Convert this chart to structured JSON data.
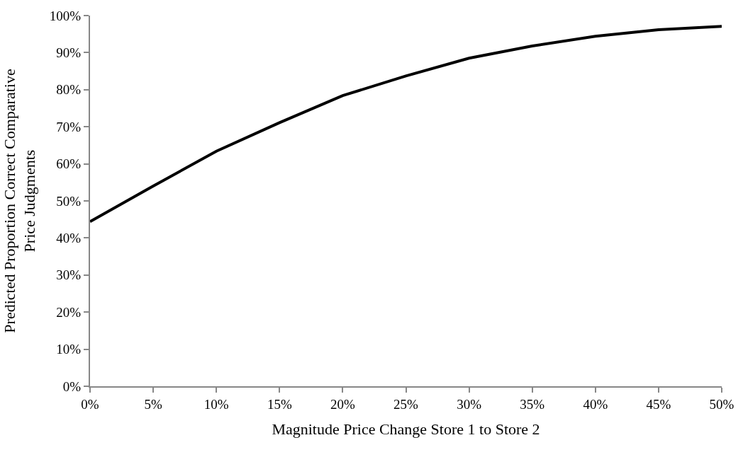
{
  "chart_data": {
    "type": "line",
    "xlabel": "Magnitude Price Change Store 1 to Store 2",
    "ylabel": "Predicted Proportion Correct Comparative Price Judgments",
    "x": [
      0,
      5,
      10,
      15,
      20,
      25,
      30,
      35,
      40,
      45,
      50
    ],
    "series": [
      {
        "color": "#000000",
        "values": [
          44.4,
          54.0,
          63.4,
          71.1,
          78.4,
          83.7,
          88.5,
          91.8,
          94.4,
          96.2,
          97.1
        ]
      }
    ],
    "xlim": [
      0,
      50
    ],
    "xticks": [
      {
        "value": 0,
        "label": "0%"
      },
      {
        "value": 5,
        "label": "5%"
      },
      {
        "value": 10,
        "label": "10%"
      },
      {
        "value": 15,
        "label": "15%"
      },
      {
        "value": 20,
        "label": "20%"
      },
      {
        "value": 25,
        "label": "25%"
      },
      {
        "value": 30,
        "label": "30%"
      },
      {
        "value": 35,
        "label": "35%"
      },
      {
        "value": 40,
        "label": "40%"
      },
      {
        "value": 45,
        "label": "45%"
      },
      {
        "value": 50,
        "label": "50%"
      }
    ],
    "ylim": [
      0,
      100
    ],
    "yticks": [
      {
        "value": 0,
        "label": "0%"
      },
      {
        "value": 10,
        "label": "10%"
      },
      {
        "value": 20,
        "label": "20%"
      },
      {
        "value": 30,
        "label": "30%"
      },
      {
        "value": 40,
        "label": "40%"
      },
      {
        "value": 50,
        "label": "50%"
      },
      {
        "value": 60,
        "label": "60%"
      },
      {
        "value": 70,
        "label": "70%"
      },
      {
        "value": 80,
        "label": "80%"
      },
      {
        "value": 90,
        "label": "90%"
      },
      {
        "value": 100,
        "label": "100%"
      }
    ],
    "marker": "none",
    "line_style": "solid"
  }
}
